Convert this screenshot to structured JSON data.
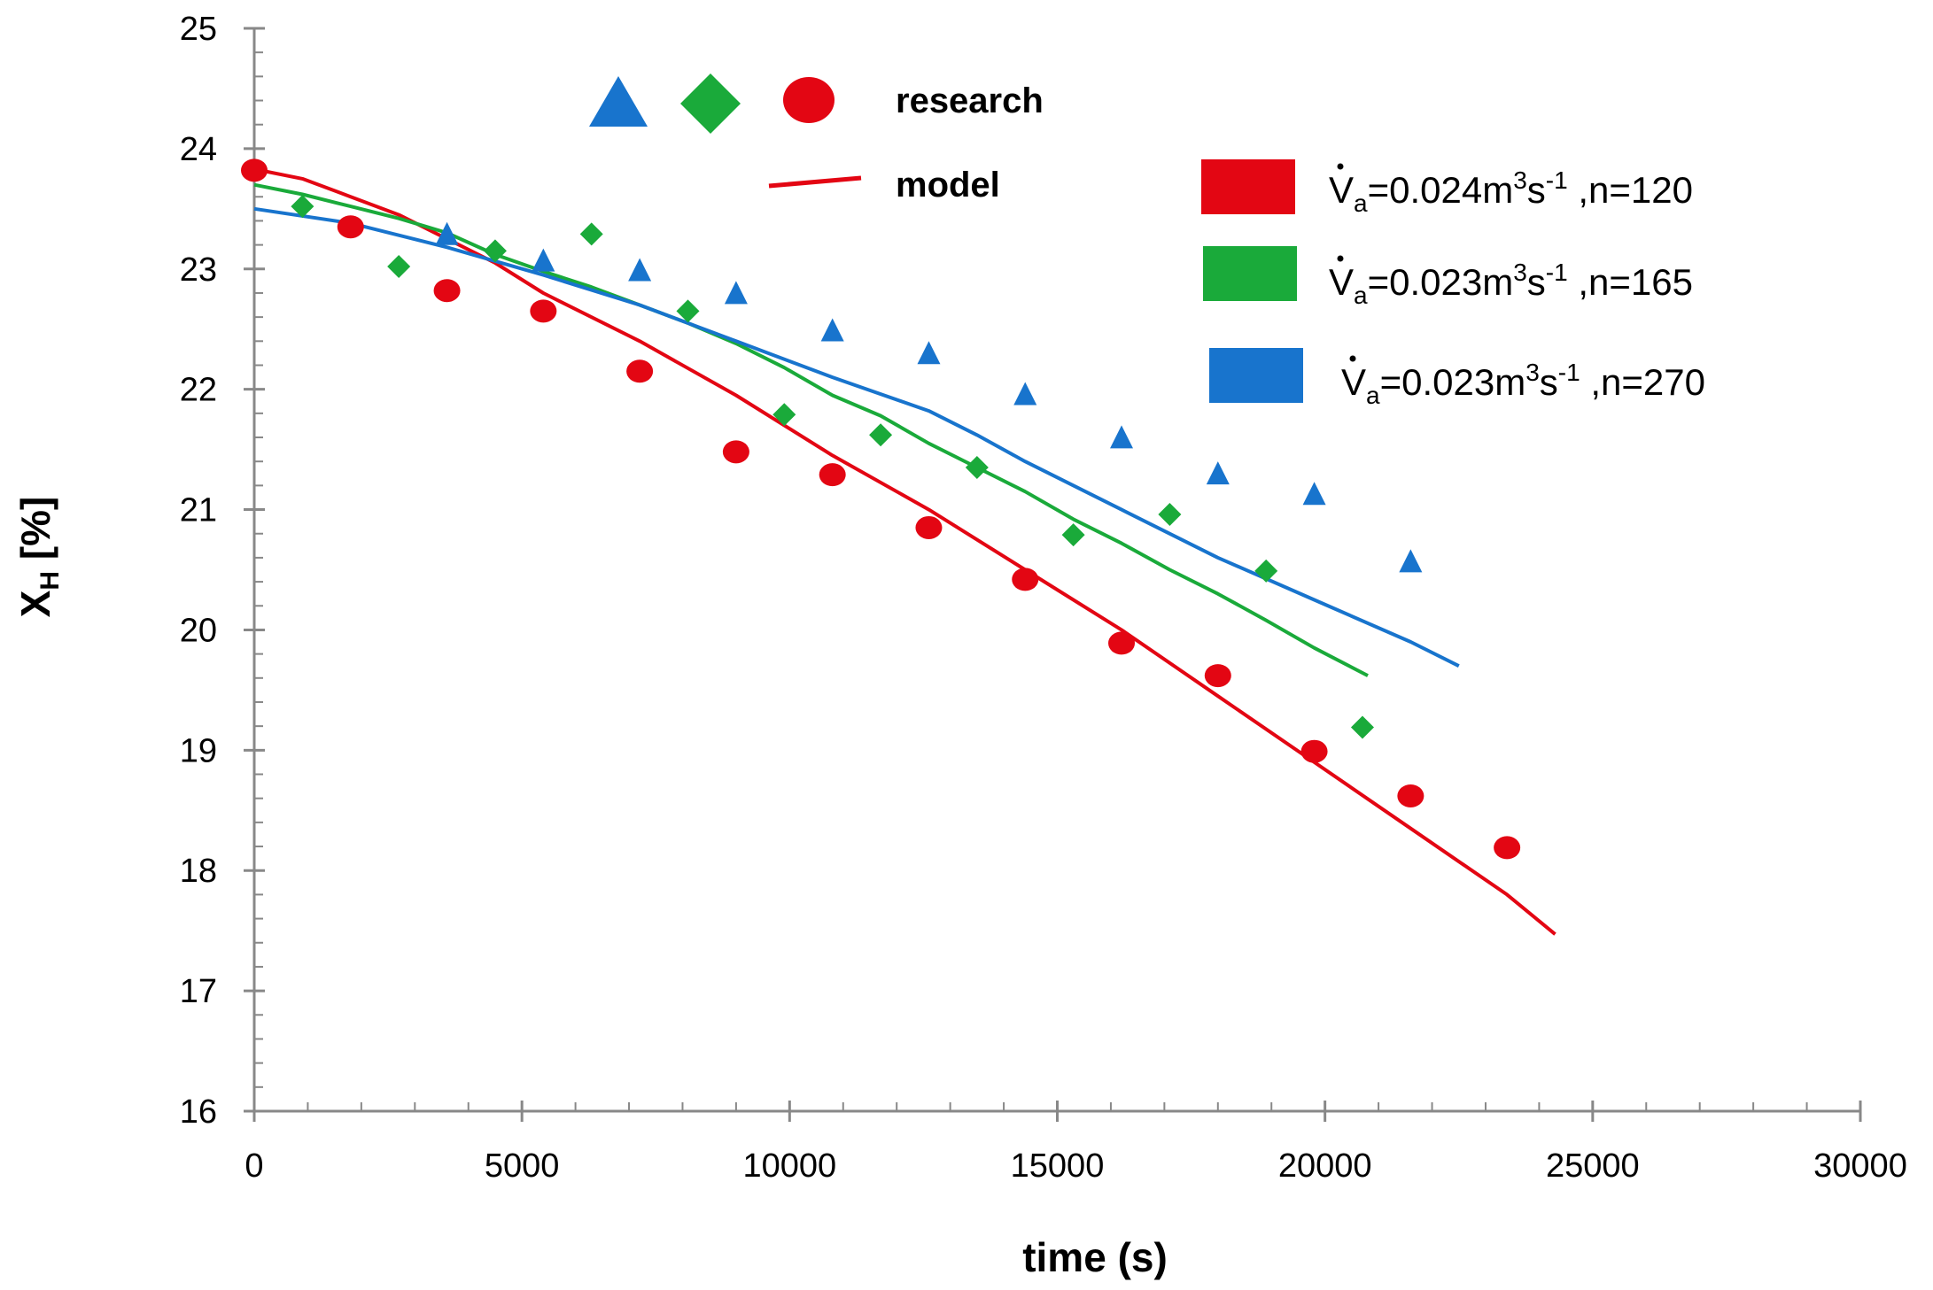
{
  "chart_data": {
    "type": "scatter",
    "title": "",
    "xlabel": "time (s)",
    "ylabel": "X",
    "ylabel_sub": "H",
    "ylabel_unit": " [%]",
    "xlim": [
      0,
      30000
    ],
    "ylim": [
      16,
      25
    ],
    "xticks": [
      0,
      5000,
      10000,
      15000,
      20000,
      25000,
      30000
    ],
    "yticks": [
      16,
      17,
      18,
      19,
      20,
      21,
      22,
      23,
      24,
      25
    ],
    "grid": false,
    "legend": {
      "marker_label": "research",
      "line_label": "model"
    },
    "series": [
      {
        "name": "Va=0.024m3s-1 ,n=120",
        "label_parts": {
          "sym": "V",
          "sub": "a",
          "mid": "=0.024m",
          "sup1": "3",
          "s": "s",
          "sup2": "-1",
          "tail": " ,n=120"
        },
        "color": "#E30613",
        "marker": "circle",
        "research": [
          [
            0,
            23.82
          ],
          [
            1800,
            23.35
          ],
          [
            3600,
            22.82
          ],
          [
            5400,
            22.65
          ],
          [
            7200,
            22.15
          ],
          [
            9000,
            21.48
          ],
          [
            10800,
            21.29
          ],
          [
            12600,
            20.85
          ],
          [
            14400,
            20.42
          ],
          [
            16200,
            19.89
          ],
          [
            18000,
            19.62
          ],
          [
            19800,
            18.99
          ],
          [
            21600,
            18.62
          ],
          [
            23400,
            18.19
          ]
        ],
        "model": [
          [
            0,
            23.83
          ],
          [
            900,
            23.75
          ],
          [
            1800,
            23.6
          ],
          [
            2700,
            23.45
          ],
          [
            3600,
            23.25
          ],
          [
            4500,
            23.05
          ],
          [
            5400,
            22.8
          ],
          [
            7200,
            22.4
          ],
          [
            9000,
            21.95
          ],
          [
            10800,
            21.45
          ],
          [
            12600,
            21.0
          ],
          [
            14400,
            20.5
          ],
          [
            16200,
            20.0
          ],
          [
            18000,
            19.45
          ],
          [
            19800,
            18.9
          ],
          [
            21600,
            18.35
          ],
          [
            23400,
            17.8
          ],
          [
            24300,
            17.47
          ]
        ]
      },
      {
        "name": "Va=0.023m3s-1 ,n=165",
        "label_parts": {
          "sym": "V",
          "sub": "a",
          "mid": "=0.023m",
          "sup1": "3",
          "s": "s",
          "sup2": "-1",
          "tail": " ,n=165"
        },
        "color": "#1AAA3A",
        "marker": "diamond",
        "research": [
          [
            900,
            23.52
          ],
          [
            2700,
            23.02
          ],
          [
            4500,
            23.15
          ],
          [
            6300,
            23.29
          ],
          [
            8100,
            22.65
          ],
          [
            9900,
            21.79
          ],
          [
            11700,
            21.62
          ],
          [
            13500,
            21.35
          ],
          [
            15300,
            20.79
          ],
          [
            17100,
            20.96
          ],
          [
            18900,
            20.49
          ],
          [
            20700,
            19.19
          ]
        ],
        "model": [
          [
            0,
            23.7
          ],
          [
            900,
            23.62
          ],
          [
            1800,
            23.52
          ],
          [
            2700,
            23.42
          ],
          [
            3600,
            23.3
          ],
          [
            4500,
            23.12
          ],
          [
            5400,
            22.98
          ],
          [
            6300,
            22.85
          ],
          [
            7200,
            22.7
          ],
          [
            8100,
            22.55
          ],
          [
            9000,
            22.38
          ],
          [
            9900,
            22.18
          ],
          [
            10800,
            21.95
          ],
          [
            11700,
            21.78
          ],
          [
            12600,
            21.55
          ],
          [
            13500,
            21.35
          ],
          [
            14400,
            21.15
          ],
          [
            15300,
            20.92
          ],
          [
            16200,
            20.72
          ],
          [
            17100,
            20.5
          ],
          [
            18000,
            20.3
          ],
          [
            18900,
            20.08
          ],
          [
            19800,
            19.85
          ],
          [
            20800,
            19.62
          ]
        ]
      },
      {
        "name": "Va=0.023m3s-1 ,n=270",
        "label_parts": {
          "sym": "V",
          "sub": "a",
          "mid": "=0.023m",
          "sup1": "3",
          "s": "s",
          "sup2": "-1",
          "tail": " ,n=270"
        },
        "color": "#1874CD",
        "marker": "triangle",
        "research": [
          [
            3600,
            23.28
          ],
          [
            5400,
            23.06
          ],
          [
            7200,
            22.98
          ],
          [
            9000,
            22.79
          ],
          [
            10800,
            22.48
          ],
          [
            12600,
            22.29
          ],
          [
            14400,
            21.95
          ],
          [
            16200,
            21.59
          ],
          [
            18000,
            21.29
          ],
          [
            19800,
            21.12
          ],
          [
            21600,
            20.56
          ]
        ],
        "model": [
          [
            0,
            23.5
          ],
          [
            1800,
            23.38
          ],
          [
            3600,
            23.18
          ],
          [
            5400,
            22.95
          ],
          [
            7200,
            22.7
          ],
          [
            9000,
            22.4
          ],
          [
            10800,
            22.1
          ],
          [
            12600,
            21.82
          ],
          [
            13500,
            21.62
          ],
          [
            14400,
            21.4
          ],
          [
            16200,
            21.0
          ],
          [
            18000,
            20.6
          ],
          [
            19800,
            20.25
          ],
          [
            21600,
            19.9
          ],
          [
            22500,
            19.7
          ]
        ]
      }
    ]
  }
}
